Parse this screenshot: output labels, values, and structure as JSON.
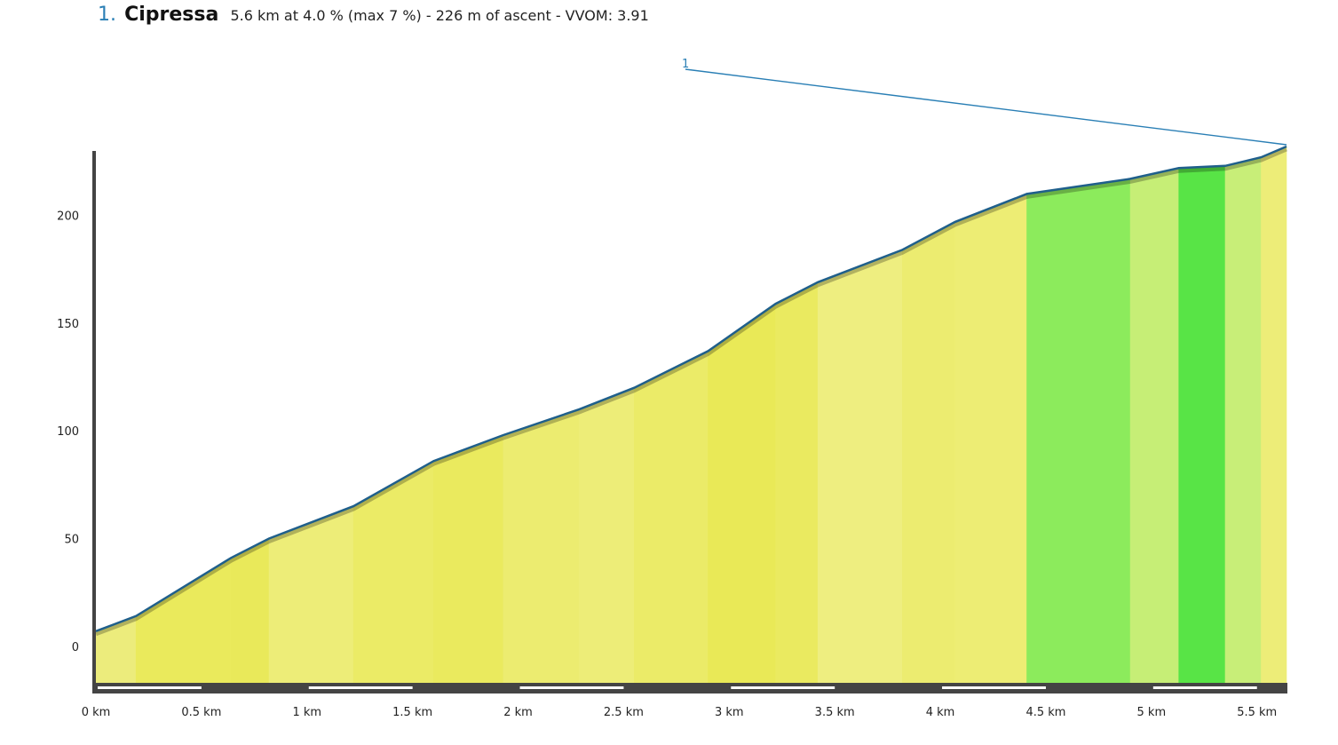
{
  "header": {
    "number": "1.",
    "name": "Cipressa",
    "stats": "5.6 km at 4.0 % (max 7 %) - 226 m of ascent - VVOM: 3.91"
  },
  "colors": {
    "profile_line": "#1f5f8b",
    "axis": "#444444",
    "marker": "#2a7fb5"
  },
  "chart_data": {
    "type": "area",
    "title": "",
    "xlabel": "",
    "ylabel": "",
    "xlim": [
      0,
      5.64
    ],
    "ylim": [
      -17,
      232
    ],
    "x_ticks": [
      {
        "value": 0,
        "label": "0 km"
      },
      {
        "value": 0.5,
        "label": "0.5 km"
      },
      {
        "value": 1,
        "label": "1 km"
      },
      {
        "value": 1.5,
        "label": "1.5 km"
      },
      {
        "value": 2,
        "label": "2 km"
      },
      {
        "value": 2.5,
        "label": "2.5 km"
      },
      {
        "value": 3,
        "label": "3 km"
      },
      {
        "value": 3.5,
        "label": "3.5 km"
      },
      {
        "value": 4,
        "label": "4 km"
      },
      {
        "value": 4.5,
        "label": "4.5 km"
      },
      {
        "value": 5,
        "label": "5 km"
      },
      {
        "value": 5.5,
        "label": "5.5 km"
      }
    ],
    "y_ticks": [
      {
        "value": 0,
        "label": "0"
      },
      {
        "value": 50,
        "label": "50"
      },
      {
        "value": 100,
        "label": "100"
      },
      {
        "value": 150,
        "label": "150"
      },
      {
        "value": 200,
        "label": "200"
      }
    ],
    "profile": [
      {
        "x": 0,
        "y": 7
      },
      {
        "x": 0.19,
        "y": 14
      },
      {
        "x": 0.64,
        "y": 41
      },
      {
        "x": 0.82,
        "y": 50
      },
      {
        "x": 1.22,
        "y": 65
      },
      {
        "x": 1.6,
        "y": 86
      },
      {
        "x": 1.93,
        "y": 98
      },
      {
        "x": 2.29,
        "y": 110
      },
      {
        "x": 2.55,
        "y": 120
      },
      {
        "x": 2.9,
        "y": 137
      },
      {
        "x": 3.22,
        "y": 159
      },
      {
        "x": 3.42,
        "y": 169
      },
      {
        "x": 3.82,
        "y": 184
      },
      {
        "x": 4.07,
        "y": 197
      },
      {
        "x": 4.41,
        "y": 210
      },
      {
        "x": 4.9,
        "y": 217
      },
      {
        "x": 5.13,
        "y": 222
      },
      {
        "x": 5.35,
        "y": 223
      },
      {
        "x": 5.52,
        "y": 227
      },
      {
        "x": 5.64,
        "y": 232
      }
    ],
    "segment_colors": [
      {
        "from": 0,
        "to": 0.19,
        "color": "#ecec7c"
      },
      {
        "from": 0.19,
        "to": 0.64,
        "color": "#eaea5c"
      },
      {
        "from": 0.64,
        "to": 0.82,
        "color": "#e9e95a"
      },
      {
        "from": 0.82,
        "to": 1.22,
        "color": "#eded78"
      },
      {
        "from": 1.22,
        "to": 1.6,
        "color": "#ebeb66"
      },
      {
        "from": 1.6,
        "to": 1.93,
        "color": "#eaea5e"
      },
      {
        "from": 1.93,
        "to": 2.29,
        "color": "#ecec70"
      },
      {
        "from": 2.29,
        "to": 2.55,
        "color": "#eded78"
      },
      {
        "from": 2.55,
        "to": 2.9,
        "color": "#ebeb68"
      },
      {
        "from": 2.9,
        "to": 3.22,
        "color": "#e9e957"
      },
      {
        "from": 3.22,
        "to": 3.42,
        "color": "#eaea60"
      },
      {
        "from": 3.42,
        "to": 3.82,
        "color": "#eeee80"
      },
      {
        "from": 3.82,
        "to": 4.07,
        "color": "#ecec70"
      },
      {
        "from": 4.07,
        "to": 4.41,
        "color": "#eded74"
      },
      {
        "from": 4.41,
        "to": 4.9,
        "color": "#8ceb5c"
      },
      {
        "from": 4.9,
        "to": 5.13,
        "color": "#c6ee76"
      },
      {
        "from": 5.13,
        "to": 5.35,
        "color": "#58e446"
      },
      {
        "from": 5.35,
        "to": 5.52,
        "color": "#c8ee78"
      },
      {
        "from": 5.52,
        "to": 5.64,
        "color": "#eded78"
      }
    ],
    "markers": [
      {
        "label": "1",
        "x": 5.64,
        "y": 232
      }
    ]
  }
}
